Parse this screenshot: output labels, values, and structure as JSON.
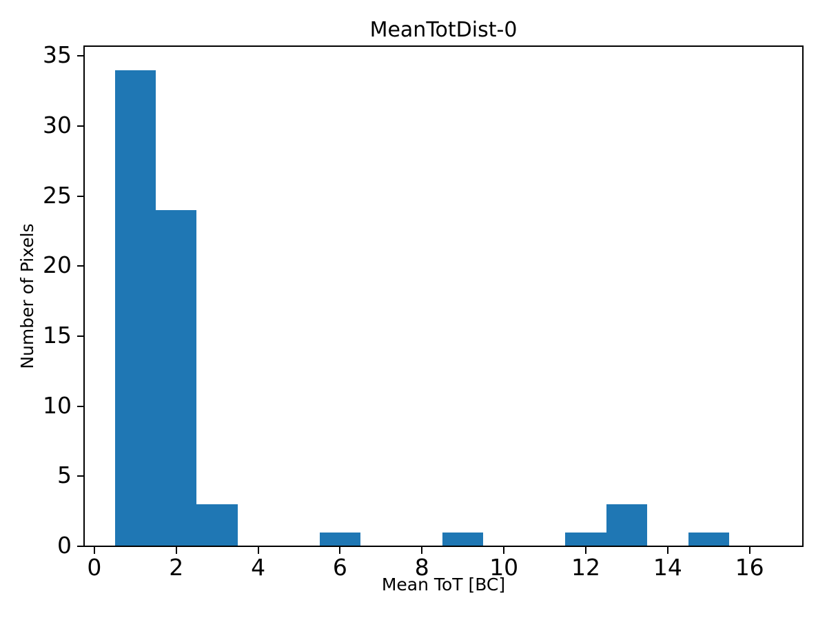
{
  "figure": {
    "background": "#ffffff",
    "text_color": "#000000"
  },
  "chart_data": {
    "type": "bar",
    "subtype": "histogram",
    "title": "MeanTotDist-0",
    "xlabel": "Mean ToT [BC]",
    "ylabel": "Number of Pixels",
    "bar_color": "#1f77b4",
    "axis_color": "#000000",
    "grid": false,
    "bin_width": 1,
    "bin_centers": [
      1,
      2,
      3,
      4,
      5,
      6,
      7,
      8,
      9,
      10,
      11,
      12,
      13,
      14,
      15,
      16
    ],
    "values": [
      34,
      24,
      3,
      0,
      0,
      1,
      0,
      0,
      1,
      0,
      0,
      1,
      3,
      0,
      1,
      0
    ],
    "xticks": [
      0,
      2,
      4,
      6,
      8,
      10,
      12,
      14,
      16
    ],
    "yticks": [
      0,
      5,
      10,
      15,
      20,
      25,
      30,
      35
    ],
    "xlim": [
      -0.25,
      17.3
    ],
    "ylim": [
      0,
      35.7
    ]
  }
}
